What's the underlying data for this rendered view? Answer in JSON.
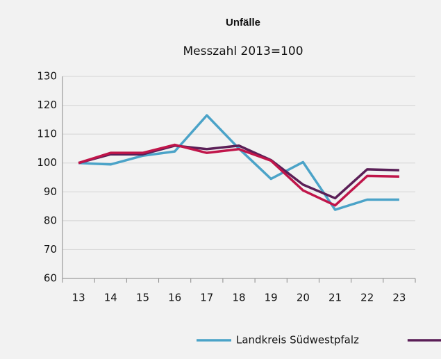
{
  "chart_data": {
    "type": "line",
    "title": "Unfälle",
    "subtitle": "Messzahl 2013=100",
    "categories": [
      "13",
      "14",
      "15",
      "16",
      "17",
      "18",
      "19",
      "20",
      "21",
      "22",
      "23"
    ],
    "series": [
      {
        "name": "Landkreis Südwestpfalz",
        "color": "#4ba3c8",
        "values": [
          100,
          99.5,
          102.5,
          104,
          116.5,
          105,
          94.5,
          100.3,
          83.8,
          87.3,
          87.3
        ]
      },
      {
        "color": "#5b1f57",
        "values": [
          100,
          103,
          103,
          106,
          104.8,
          106,
          101,
          92.5,
          87.8,
          97.8,
          97.5
        ]
      },
      {
        "color": "#c0154a",
        "values": [
          100,
          103.5,
          103.5,
          106.3,
          103.5,
          104.8,
          100.8,
          90.5,
          85.3,
          95.5,
          95.3
        ]
      }
    ],
    "ylim": [
      60,
      130
    ],
    "yticks": [
      60,
      70,
      80,
      90,
      100,
      110,
      120,
      130
    ],
    "grid": true
  }
}
